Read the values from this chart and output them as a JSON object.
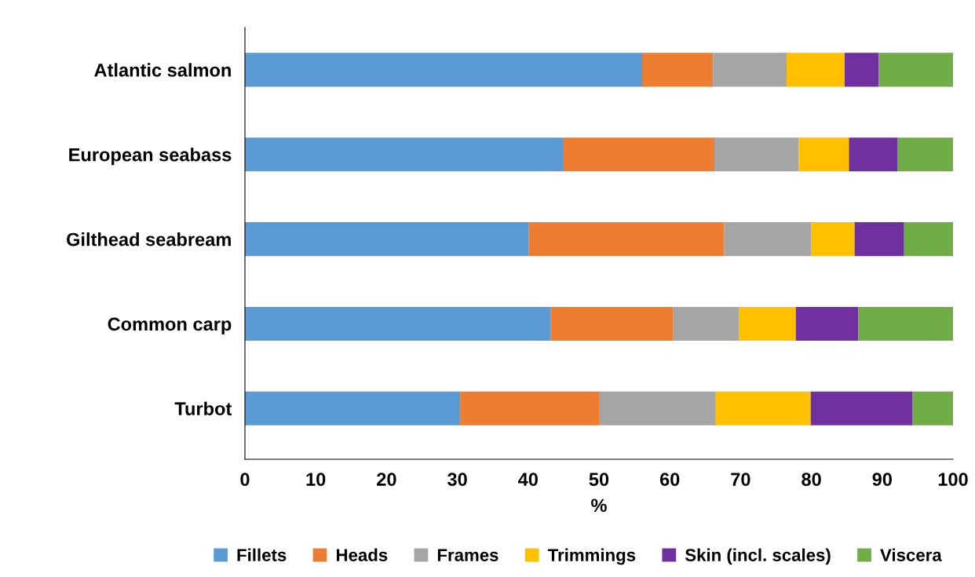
{
  "chart_data": {
    "type": "bar",
    "orientation": "horizontal",
    "stacked": true,
    "xlabel": "%",
    "categories": [
      "Atlantic salmon",
      "European seabass",
      "Gilthead seabream",
      "Common carp",
      "Turbot"
    ],
    "series": [
      {
        "name": "Fillets",
        "color": "#5b9bd5",
        "values": [
          56.1,
          45.0,
          40.1,
          43.2,
          30.4
        ]
      },
      {
        "name": "Heads",
        "color": "#ed7d31",
        "values": [
          10.0,
          21.3,
          27.6,
          17.3,
          19.6
        ]
      },
      {
        "name": "Frames",
        "color": "#a5a5a5",
        "values": [
          10.4,
          11.9,
          12.3,
          9.3,
          16.5
        ]
      },
      {
        "name": "Trimmings",
        "color": "#ffc000",
        "values": [
          8.2,
          7.1,
          6.1,
          8.0,
          13.4
        ]
      },
      {
        "name": "Skin (incl. scales)",
        "color": "#7030a0",
        "values": [
          4.8,
          6.9,
          7.0,
          8.8,
          14.4
        ]
      },
      {
        "name": "Viscera",
        "color": "#70ad47",
        "values": [
          10.5,
          7.8,
          6.9,
          13.4,
          5.7
        ]
      }
    ],
    "xlim": [
      0,
      100
    ],
    "xticks": [
      0,
      10,
      20,
      30,
      40,
      50,
      60,
      70,
      80,
      90,
      100
    ],
    "grid": false,
    "legend": "bottom"
  }
}
